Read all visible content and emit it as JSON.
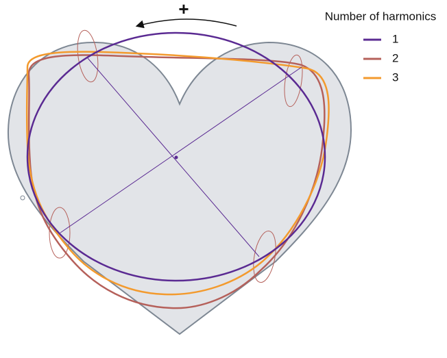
{
  "rotation_sign": "+",
  "legend": {
    "title": "Number of harmonics",
    "entries": [
      {
        "label": "1",
        "color": "#5a2a92"
      },
      {
        "label": "2",
        "color": "#b5605a"
      },
      {
        "label": "3",
        "color": "#f39a2d"
      }
    ]
  }
}
